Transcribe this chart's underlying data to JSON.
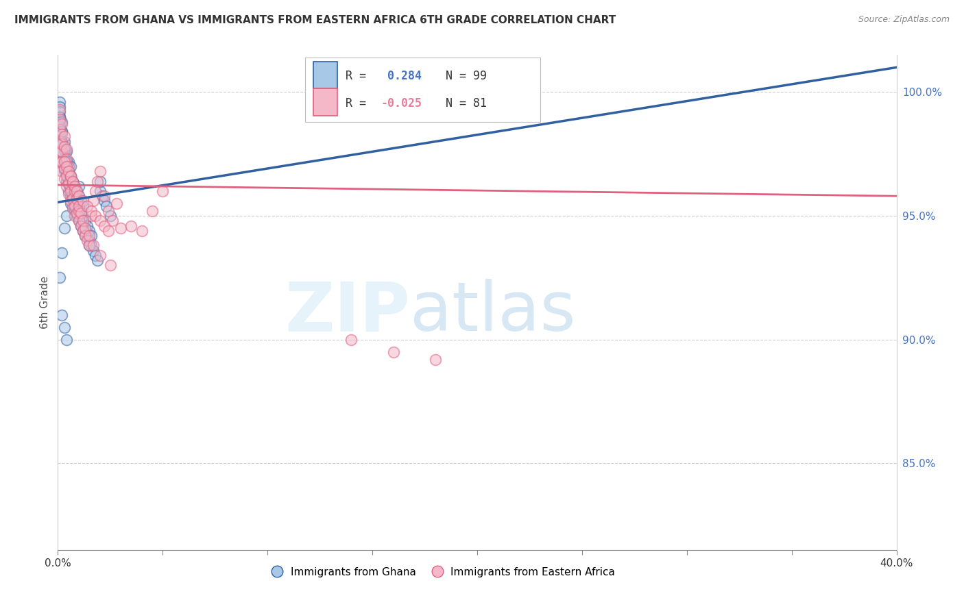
{
  "title": "IMMIGRANTS FROM GHANA VS IMMIGRANTS FROM EASTERN AFRICA 6TH GRADE CORRELATION CHART",
  "source": "Source: ZipAtlas.com",
  "ylabel": "6th Grade",
  "ytick_labels": [
    "85.0%",
    "90.0%",
    "95.0%",
    "100.0%"
  ],
  "ytick_values": [
    0.85,
    0.9,
    0.95,
    1.0
  ],
  "legend_blue_label": "Immigrants from Ghana",
  "legend_pink_label": "Immigrants from Eastern Africa",
  "R_blue": 0.284,
  "N_blue": 99,
  "R_pink": -0.025,
  "N_pink": 81,
  "blue_color": "#a8c8e8",
  "pink_color": "#f4b8c8",
  "blue_line_color": "#3060a0",
  "pink_line_color": "#e06080",
  "watermark_zip": "ZIP",
  "watermark_atlas": "atlas",
  "xmin": 0.0,
  "xmax": 0.4,
  "ymin": 0.815,
  "ymax": 1.015,
  "blue_x": [
    0.001,
    0.001,
    0.001,
    0.002,
    0.002,
    0.002,
    0.002,
    0.003,
    0.003,
    0.003,
    0.003,
    0.004,
    0.004,
    0.004,
    0.004,
    0.005,
    0.005,
    0.005,
    0.005,
    0.006,
    0.006,
    0.006,
    0.006,
    0.007,
    0.007,
    0.007,
    0.008,
    0.008,
    0.008,
    0.009,
    0.009,
    0.009,
    0.01,
    0.01,
    0.01,
    0.01,
    0.011,
    0.011,
    0.011,
    0.012,
    0.012,
    0.012,
    0.013,
    0.013,
    0.014,
    0.014,
    0.015,
    0.015,
    0.016,
    0.016,
    0.017,
    0.018,
    0.019,
    0.02,
    0.02,
    0.021,
    0.022,
    0.023,
    0.025,
    0.001,
    0.001,
    0.001,
    0.001,
    0.001,
    0.001,
    0.001,
    0.001,
    0.001,
    0.001,
    0.002,
    0.002,
    0.002,
    0.002,
    0.002,
    0.003,
    0.003,
    0.003,
    0.004,
    0.004,
    0.005,
    0.005,
    0.006,
    0.007,
    0.007,
    0.008,
    0.009,
    0.01,
    0.011,
    0.012,
    0.013,
    0.015,
    0.006,
    0.004,
    0.003,
    0.002,
    0.001,
    0.002,
    0.003,
    0.004
  ],
  "blue_y": [
    0.98,
    0.985,
    0.99,
    0.972,
    0.976,
    0.98,
    0.984,
    0.968,
    0.972,
    0.976,
    0.98,
    0.964,
    0.968,
    0.972,
    0.976,
    0.96,
    0.964,
    0.968,
    0.972,
    0.958,
    0.962,
    0.966,
    0.97,
    0.956,
    0.96,
    0.964,
    0.954,
    0.958,
    0.962,
    0.952,
    0.956,
    0.96,
    0.95,
    0.954,
    0.958,
    0.962,
    0.948,
    0.952,
    0.956,
    0.946,
    0.95,
    0.954,
    0.944,
    0.948,
    0.942,
    0.946,
    0.94,
    0.944,
    0.938,
    0.942,
    0.936,
    0.934,
    0.932,
    0.96,
    0.964,
    0.958,
    0.956,
    0.954,
    0.95,
    0.996,
    0.994,
    0.992,
    0.99,
    0.988,
    0.986,
    0.984,
    0.982,
    0.98,
    0.978,
    0.988,
    0.984,
    0.98,
    0.976,
    0.972,
    0.977,
    0.973,
    0.969,
    0.972,
    0.968,
    0.967,
    0.963,
    0.961,
    0.958,
    0.954,
    0.952,
    0.95,
    0.948,
    0.946,
    0.944,
    0.942,
    0.938,
    0.955,
    0.95,
    0.945,
    0.935,
    0.925,
    0.91,
    0.905,
    0.9
  ],
  "pink_x": [
    0.001,
    0.001,
    0.001,
    0.002,
    0.002,
    0.002,
    0.003,
    0.003,
    0.004,
    0.004,
    0.005,
    0.005,
    0.006,
    0.006,
    0.007,
    0.007,
    0.008,
    0.008,
    0.009,
    0.01,
    0.01,
    0.011,
    0.012,
    0.013,
    0.014,
    0.015,
    0.016,
    0.017,
    0.018,
    0.019,
    0.02,
    0.022,
    0.024,
    0.026,
    0.028,
    0.03,
    0.035,
    0.04,
    0.045,
    0.05,
    0.001,
    0.001,
    0.001,
    0.002,
    0.002,
    0.002,
    0.003,
    0.003,
    0.004,
    0.004,
    0.005,
    0.006,
    0.007,
    0.008,
    0.009,
    0.01,
    0.011,
    0.012,
    0.013,
    0.015,
    0.017,
    0.02,
    0.025,
    0.003,
    0.004,
    0.005,
    0.006,
    0.007,
    0.008,
    0.009,
    0.01,
    0.012,
    0.014,
    0.016,
    0.018,
    0.02,
    0.022,
    0.024,
    0.14,
    0.16,
    0.18
  ],
  "pink_y": [
    0.972,
    0.976,
    0.98,
    0.968,
    0.972,
    0.976,
    0.965,
    0.969,
    0.962,
    0.966,
    0.959,
    0.963,
    0.956,
    0.96,
    0.953,
    0.957,
    0.95,
    0.954,
    0.951,
    0.948,
    0.952,
    0.946,
    0.944,
    0.942,
    0.94,
    0.938,
    0.95,
    0.956,
    0.96,
    0.964,
    0.968,
    0.958,
    0.952,
    0.948,
    0.955,
    0.945,
    0.946,
    0.944,
    0.952,
    0.96,
    0.993,
    0.989,
    0.985,
    0.987,
    0.983,
    0.979,
    0.982,
    0.978,
    0.977,
    0.973,
    0.97,
    0.966,
    0.963,
    0.96,
    0.957,
    0.954,
    0.951,
    0.948,
    0.945,
    0.942,
    0.938,
    0.934,
    0.93,
    0.972,
    0.97,
    0.968,
    0.966,
    0.964,
    0.962,
    0.96,
    0.958,
    0.956,
    0.954,
    0.952,
    0.95,
    0.948,
    0.946,
    0.944,
    0.9,
    0.895,
    0.892
  ]
}
